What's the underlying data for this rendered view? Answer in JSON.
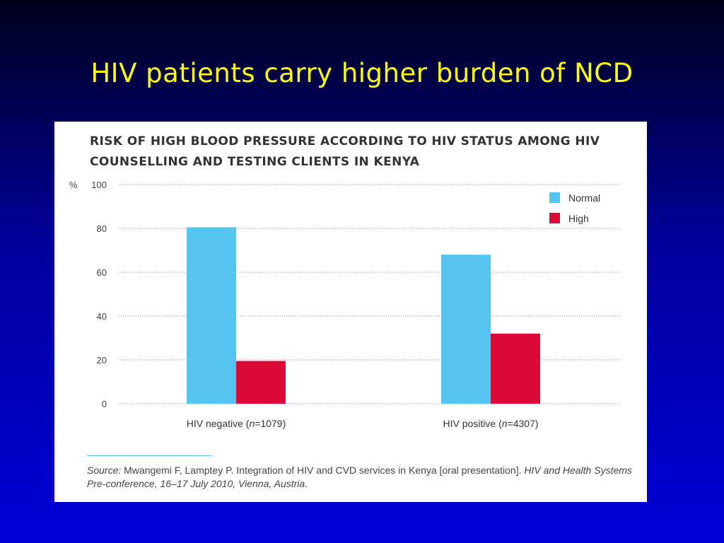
{
  "slide": {
    "title": "HIV patients carry higher burden of NCD"
  },
  "colors": {
    "background_top": "#00001c",
    "background_bottom": "#0000d8",
    "title": "#ffff00",
    "normal": "#55c4f0",
    "high": "#dc0a37",
    "panel": "#ffffff"
  },
  "chart_data": {
    "type": "bar",
    "title": "RISK OF HIGH BLOOD PRESSURE ACCORDING TO HIV STATUS AMONG HIV COUNSELLING AND TESTING CLIENTS IN KENYA",
    "ylabel": "%",
    "ylim": [
      0,
      100
    ],
    "yticks": [
      0,
      20,
      40,
      60,
      80,
      100
    ],
    "grid": true,
    "legend_position": "top-right",
    "categories": [
      "HIV negative (n=1079)",
      "HIV positive (n=4307)"
    ],
    "category_labels": [
      {
        "prefix": "HIV negative (",
        "n": "n",
        "suffix": "=1079)"
      },
      {
        "prefix": "HIV positive (",
        "n": "n",
        "suffix": "=4307)"
      }
    ],
    "series": [
      {
        "name": "Normal",
        "color": "#55c4f0",
        "values": [
          80.5,
          68
        ]
      },
      {
        "name": "High",
        "color": "#dc0a37",
        "values": [
          19.5,
          32
        ]
      }
    ]
  },
  "source": {
    "label": "Source:",
    "text_a": " Mwangemi F, Lamptey P. Integration of HIV and CVD services in Kenya [oral presentation]. ",
    "text_b": "HIV and Health Systems Pre-conference, 16–17 July 2010, Vienna, Austria",
    "text_c": "."
  }
}
